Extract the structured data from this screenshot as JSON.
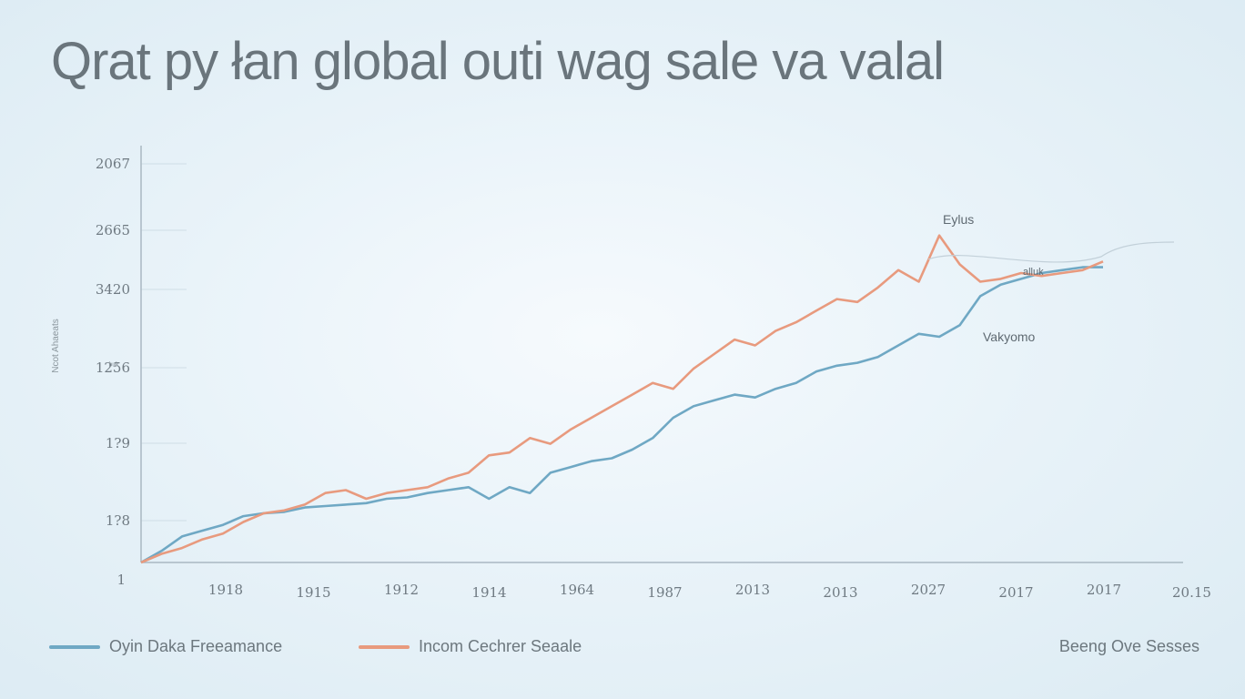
{
  "title": "Qrat py łan global outi wag sale va valal",
  "corner_text": "Beeng Ove Sesses",
  "colors": {
    "blue": "#6fa8c4",
    "orange": "#e89a7e",
    "grid": "#cfdde6",
    "axis": "#a9b8c2"
  },
  "chart_data": {
    "type": "line",
    "title": "Qrat py łan global outi wag sale va valal",
    "xlabel": "",
    "ylabel": "Ncot Ahaeats",
    "y_ticks": [
      "2067",
      "2665",
      "3420",
      "1256",
      "1?9",
      "1?8",
      "1"
    ],
    "x_ticks": [
      "1918",
      "1915",
      "1912",
      "1914",
      "1964",
      "1987",
      "2013",
      "2013",
      "2027",
      "2017",
      "2017"
    ],
    "x_end_label": "20.15",
    "ylim": [
      0,
      100
    ],
    "x": [
      0,
      2,
      4,
      6,
      8,
      10,
      12,
      14,
      16,
      18,
      20,
      22,
      24,
      26,
      28,
      30,
      32,
      34,
      36,
      38,
      40,
      42,
      44,
      46,
      48,
      50,
      52,
      54,
      56,
      58,
      60,
      62,
      64,
      66,
      68,
      70,
      72,
      74,
      76,
      78,
      80,
      82,
      84,
      86,
      88,
      90,
      92,
      94
    ],
    "series": [
      {
        "name": "Oyin Daka Freeamance",
        "color": "#6fa8c4",
        "values": [
          0,
          4,
          9,
          11,
          13,
          16,
          17,
          17.5,
          19,
          19.5,
          20,
          20.5,
          22,
          22.5,
          24,
          25,
          26,
          22,
          26,
          24,
          31,
          33,
          35,
          36,
          39,
          43,
          50,
          54,
          56,
          58,
          57,
          60,
          62,
          66,
          68,
          69,
          71,
          75,
          79,
          78,
          82,
          92,
          96,
          98,
          100,
          101,
          102,
          102
        ]
      },
      {
        "name": "Incom Cechrer Seaale",
        "color": "#e89a7e",
        "values": [
          0,
          3,
          5,
          8,
          10,
          14,
          17,
          18,
          20,
          24,
          25,
          22,
          24,
          25,
          26,
          29,
          31,
          37,
          38,
          43,
          41,
          46,
          50,
          54,
          58,
          62,
          60,
          67,
          72,
          77,
          75,
          80,
          83,
          87,
          91,
          90,
          95,
          101,
          97,
          113,
          103,
          97,
          98,
          100,
          99,
          100,
          101,
          104
        ]
      }
    ],
    "annotations": [
      {
        "text": "Eylus"
      },
      {
        "text": "alluk"
      },
      {
        "text": "Vakyomo"
      }
    ],
    "legend_position": "bottom-left",
    "grid": false
  }
}
